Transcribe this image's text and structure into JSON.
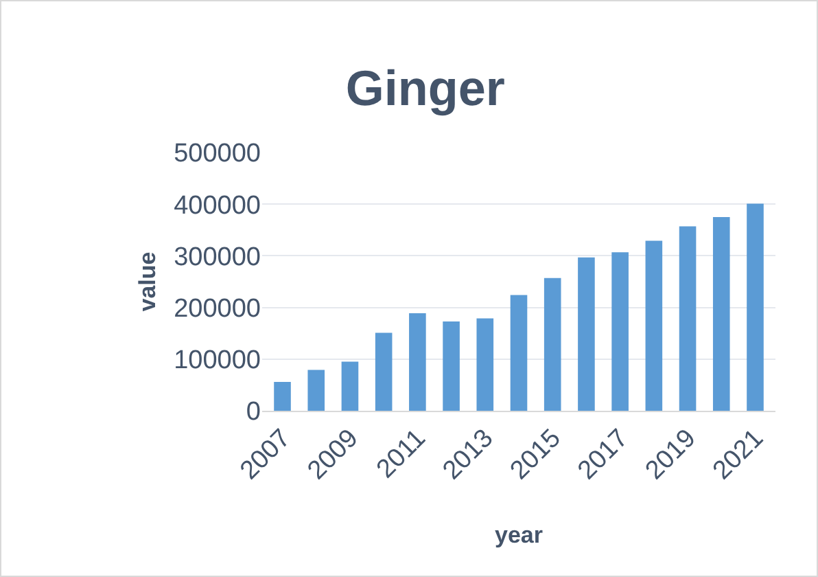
{
  "chart_data": {
    "type": "bar",
    "title": "Ginger",
    "xlabel": "year",
    "ylabel": "value",
    "categories": [
      "2007",
      null,
      "2009",
      null,
      "2011",
      null,
      "2013",
      null,
      "2015",
      null,
      "2017",
      null,
      "2019",
      null,
      "2021"
    ],
    "values": [
      56000,
      79000,
      95000,
      151000,
      189000,
      173000,
      179000,
      224000,
      257000,
      297000,
      307000,
      329000,
      357000,
      375000,
      401000
    ],
    "color": "#5b9bd5",
    "ylim": [
      0,
      500000
    ],
    "yticks": [
      0,
      100000,
      200000,
      300000,
      400000,
      500000
    ],
    "grid": "y"
  }
}
